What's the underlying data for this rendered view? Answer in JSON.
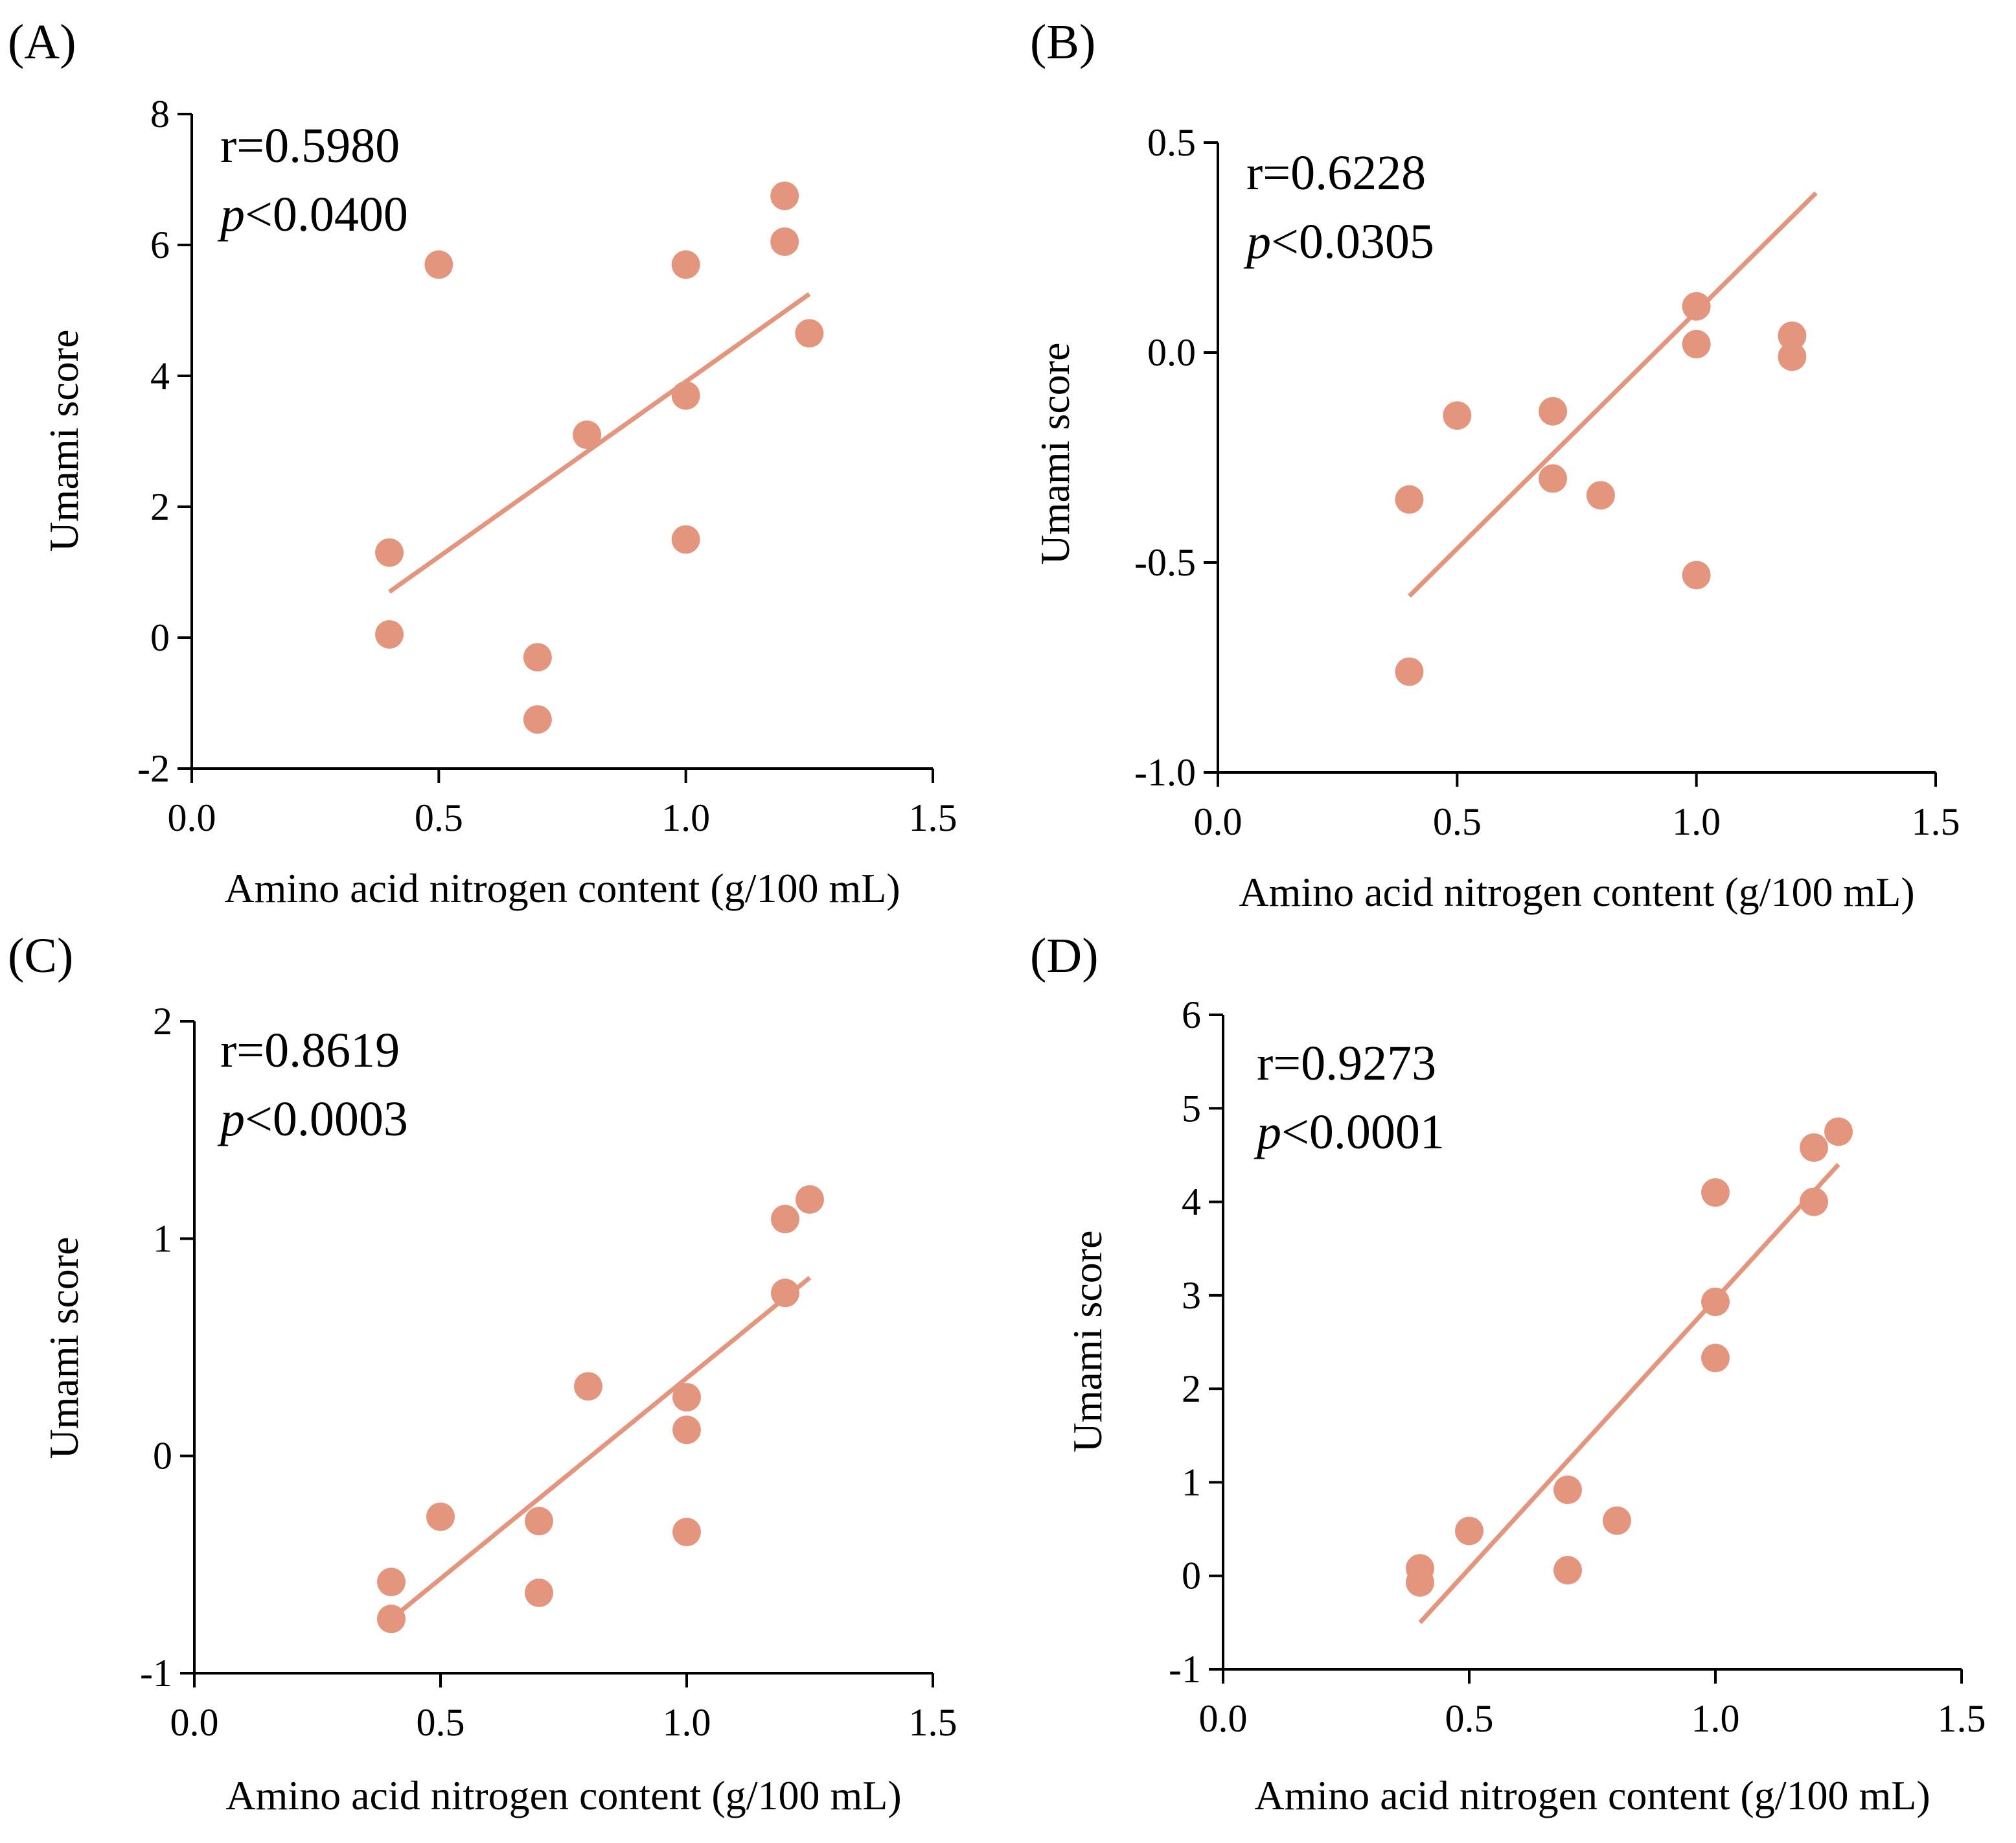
{
  "colors": {
    "point": "#E4957D",
    "line": "#E4957D",
    "axis": "#000000"
  },
  "chart_data": [
    {
      "panel": "(A)",
      "type": "scatter",
      "xlabel": "Amino acid nitrogen content (g/100 mL)",
      "ylabel": "Umami score",
      "xlim": [
        0,
        1.5
      ],
      "ylim": [
        -2,
        8
      ],
      "xticks": [
        0,
        0.5,
        1.0,
        1.5
      ],
      "xtick_labels": [
        "0.0",
        "0.5",
        "1.0",
        "1.5"
      ],
      "yticks": [
        -2,
        0,
        2,
        4,
        6,
        8
      ],
      "ytick_labels": [
        "-2",
        "0",
        "2",
        "4",
        "6",
        "8"
      ],
      "r_label": "r=0.5980",
      "p_symbol": "p",
      "p_rest": "<0.0400",
      "points": [
        [
          0.4,
          1.3
        ],
        [
          0.4,
          0.05
        ],
        [
          0.5,
          5.7
        ],
        [
          0.7,
          -0.3
        ],
        [
          0.7,
          -1.25
        ],
        [
          0.8,
          3.1
        ],
        [
          1.0,
          5.7
        ],
        [
          1.0,
          3.7
        ],
        [
          1.0,
          1.5
        ],
        [
          1.2,
          6.75
        ],
        [
          1.2,
          6.05
        ],
        [
          1.25,
          4.65
        ]
      ],
      "fit": [
        [
          0.4,
          0.7
        ],
        [
          1.25,
          5.25
        ]
      ]
    },
    {
      "panel": "(B)",
      "type": "scatter",
      "xlabel": "Amino acid nitrogen content (g/100 mL)",
      "ylabel": "Umami score",
      "xlim": [
        0,
        1.5
      ],
      "ylim": [
        -1.0,
        0.5
      ],
      "xticks": [
        0,
        0.5,
        1.0,
        1.5
      ],
      "xtick_labels": [
        "0.0",
        "0.5",
        "1.0",
        "1.5"
      ],
      "yticks": [
        -1.0,
        -0.5,
        0.0,
        0.5
      ],
      "ytick_labels": [
        "-1.0",
        "-0.5",
        "0.0",
        "0.5"
      ],
      "r_label": "r=0.6228",
      "p_symbol": "p",
      "p_rest": "<0.0305",
      "points": [
        [
          0.4,
          -0.35
        ],
        [
          0.4,
          -0.76
        ],
        [
          0.5,
          -0.15
        ],
        [
          0.7,
          -0.14
        ],
        [
          0.7,
          -0.3
        ],
        [
          0.8,
          -0.34
        ],
        [
          1.0,
          0.11
        ],
        [
          1.0,
          0.02
        ],
        [
          1.0,
          -0.53
        ],
        [
          1.2,
          0.04
        ],
        [
          1.2,
          -0.01
        ]
      ],
      "fit": [
        [
          0.4,
          -0.58
        ],
        [
          1.25,
          0.38
        ]
      ]
    },
    {
      "panel": "(C)",
      "type": "scatter",
      "xlabel": "Amino acid nitrogen content (g/100 mL)",
      "ylabel": "Umami score",
      "xlim": [
        0,
        1.5
      ],
      "ylim": [
        -1,
        2
      ],
      "xticks": [
        0,
        0.5,
        1.0,
        1.5
      ],
      "xtick_labels": [
        "0.0",
        "0.5",
        "1.0",
        "1.5"
      ],
      "yticks": [
        -1,
        0,
        1,
        2
      ],
      "ytick_labels": [
        "-1",
        "0",
        "1",
        "2"
      ],
      "r_label": "r=0.8619",
      "p_symbol": "p",
      "p_rest": "<0.0003",
      "points": [
        [
          0.4,
          -0.58
        ],
        [
          0.4,
          -0.75
        ],
        [
          0.5,
          -0.28
        ],
        [
          0.7,
          -0.3
        ],
        [
          0.7,
          -0.63
        ],
        [
          0.8,
          0.32
        ],
        [
          1.0,
          0.27
        ],
        [
          1.0,
          0.12
        ],
        [
          1.0,
          -0.35
        ],
        [
          1.2,
          1.09
        ],
        [
          1.2,
          0.75
        ],
        [
          1.25,
          1.18
        ]
      ],
      "fit": [
        [
          0.4,
          -0.75
        ],
        [
          1.25,
          0.82
        ]
      ]
    },
    {
      "panel": "(D)",
      "type": "scatter",
      "xlabel": "Amino acid nitrogen content (g/100 mL)",
      "ylabel": "Umami score",
      "xlim": [
        0,
        1.5
      ],
      "ylim": [
        -1,
        6
      ],
      "xticks": [
        0,
        0.5,
        1.0,
        1.5
      ],
      "xtick_labels": [
        "0.0",
        "0.5",
        "1.0",
        "1.5"
      ],
      "yticks": [
        -1,
        0,
        1,
        2,
        3,
        4,
        5,
        6
      ],
      "ytick_labels": [
        "-1",
        "0",
        "1",
        "2",
        "3",
        "4",
        "5",
        "6"
      ],
      "r_label": "r=0.9273",
      "p_symbol": "p",
      "p_rest": "<0.0001",
      "points": [
        [
          0.4,
          0.08
        ],
        [
          0.4,
          -0.07
        ],
        [
          0.5,
          0.48
        ],
        [
          0.7,
          0.92
        ],
        [
          0.7,
          0.06
        ],
        [
          0.8,
          0.59
        ],
        [
          1.0,
          4.1
        ],
        [
          1.0,
          2.93
        ],
        [
          1.0,
          2.33
        ],
        [
          1.2,
          4.58
        ],
        [
          1.2,
          4.0
        ],
        [
          1.25,
          4.75
        ]
      ],
      "fit": [
        [
          0.4,
          -0.5
        ],
        [
          1.25,
          4.4
        ]
      ]
    }
  ]
}
